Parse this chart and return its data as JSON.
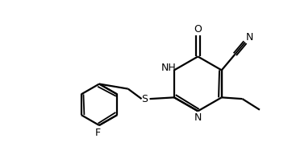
{
  "bg_color": "#ffffff",
  "line_color": "#000000",
  "line_width": 1.6,
  "font_size": 9,
  "fig_width": 3.62,
  "fig_height": 1.98,
  "dpi": 100,
  "xlim": [
    0,
    10
  ],
  "ylim": [
    0,
    5.5
  ]
}
